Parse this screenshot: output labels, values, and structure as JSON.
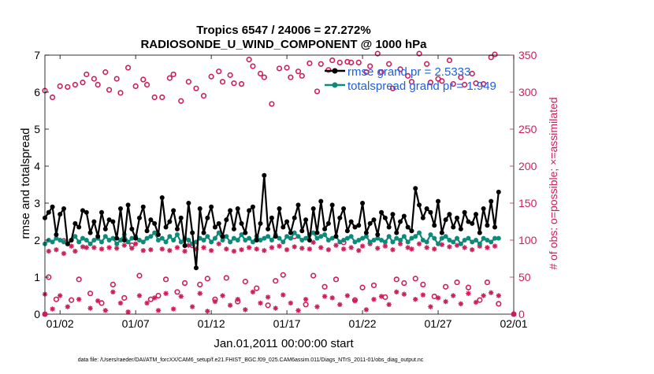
{
  "chart_data": {
    "type": "line",
    "title_line1": "Tropics 6547 / 24006 = 27.272%",
    "title_line2": "RADIOSONDE_U_WIND_COMPONENT @ 1000 hPa",
    "xlabel": "Jan.01,2011 00:00:00 start",
    "ylabel_left": "rmse and totalspread",
    "ylabel_right": "# of obs: o=possible; ×=assimilated",
    "footer": "data file: /Users/raeder/DAI/ATM_forcXX/CAM6_setup/f.e21.FHIST_BGC.f09_025.CAM6assim.011/Diags_NTrS_2011-01/obs_diag_output.nc",
    "xlim": [
      0.5,
      31.5
    ],
    "ylim_left": [
      0,
      7
    ],
    "ylim_right": [
      0,
      350
    ],
    "x_ticks": [
      1.5,
      6.5,
      11.5,
      16.5,
      21.5,
      26.5,
      31.5
    ],
    "x_tick_labels": [
      "01/02",
      "01/07",
      "01/12",
      "01/17",
      "01/22",
      "01/27",
      "02/01"
    ],
    "y_ticks_left": [
      0,
      1,
      2,
      3,
      4,
      5,
      6,
      7
    ],
    "y_tick_labels_left": [
      "0",
      "1",
      "2",
      "3",
      "4",
      "5",
      "6",
      "7"
    ],
    "y_ticks_right": [
      0,
      50,
      100,
      150,
      200,
      250,
      300,
      350
    ],
    "y_tick_labels_right": [
      "0",
      "50",
      "100",
      "150",
      "200",
      "250",
      "300",
      "350"
    ],
    "legend": {
      "position": "top-right",
      "entries": [
        "rmse grand pr = 2.5333",
        "totalspread grand pr = 1.949"
      ]
    },
    "x_step": 0.25,
    "series": [
      {
        "name": "rmse",
        "color": "#000000",
        "values": [
          2.6,
          2.75,
          2.9,
          2.15,
          2.7,
          2.85,
          1.9,
          2.0,
          2.45,
          2.35,
          2.8,
          2.75,
          2.2,
          2.5,
          2.1,
          2.75,
          2.3,
          2.55,
          2.5,
          2.05,
          2.85,
          2.0,
          2.95,
          2.3,
          2.05,
          2.6,
          2.9,
          2.25,
          2.55,
          2.45,
          2.15,
          3.15,
          2.35,
          2.5,
          2.8,
          2.3,
          2.6,
          1.85,
          3.0,
          2.2,
          1.25,
          2.85,
          2.2,
          2.6,
          2.9,
          2.35,
          2.45,
          2.1,
          2.55,
          2.8,
          2.3,
          2.85,
          2.45,
          2.2,
          2.8,
          2.9,
          2.0,
          2.45,
          3.75,
          2.3,
          2.6,
          2.1,
          2.85,
          2.35,
          2.5,
          2.2,
          2.6,
          2.95,
          2.25,
          2.55,
          2.0,
          2.85,
          2.2,
          3.05,
          2.3,
          2.45,
          2.95,
          2.1,
          2.6,
          2.85,
          2.25,
          2.5,
          2.35,
          2.4,
          3.0,
          2.2,
          2.45,
          2.55,
          2.15,
          2.75,
          2.6,
          2.35,
          2.7,
          2.2,
          2.5,
          2.65,
          2.35,
          2.25,
          3.4,
          2.95,
          2.6,
          2.85,
          2.75,
          2.4,
          3.05,
          2.2,
          2.55,
          2.7,
          2.35,
          2.6,
          2.3,
          2.75,
          2.5,
          2.45,
          2.7,
          2.2,
          2.85,
          2.4,
          3.05,
          2.35,
          3.3
        ]
      },
      {
        "name": "totalspread",
        "color": "#0e8a7a",
        "values": [
          1.9,
          2.0,
          1.95,
          2.05,
          2.0,
          1.95,
          1.9,
          2.0,
          2.1,
          1.95,
          2.05,
          2.0,
          1.9,
          2.0,
          2.05,
          1.95,
          2.1,
          2.0,
          2.05,
          1.9,
          2.0,
          2.15,
          1.95,
          2.05,
          2.1,
          2.0,
          1.95,
          2.05,
          2.1,
          2.2,
          2.0,
          2.05,
          1.95,
          2.1,
          2.0,
          2.15,
          1.95,
          2.05,
          2.0,
          1.9,
          1.95,
          2.05,
          2.0,
          2.1,
          1.95,
          2.05,
          2.2,
          2.0,
          2.1,
          1.95,
          2.05,
          2.0,
          2.15,
          2.0,
          2.05,
          1.95,
          2.1,
          2.0,
          2.05,
          2.1,
          2.0,
          2.15,
          2.05,
          1.95,
          2.1,
          2.05,
          2.2,
          2.1,
          2.0,
          2.05,
          2.15,
          2.2,
          2.05,
          2.1,
          2.15,
          2.0,
          2.05,
          2.1,
          1.95,
          2.0,
          2.05,
          2.1,
          1.95,
          2.0,
          2.05,
          2.1,
          1.95,
          2.0,
          2.05,
          2.0,
          1.95,
          2.1,
          1.95,
          2.05,
          2.0,
          2.1,
          1.95,
          2.05,
          2.1,
          2.2,
          2.0,
          1.95,
          2.15,
          2.05,
          1.9,
          2.05,
          2.1,
          2.0,
          1.95,
          2.05,
          1.9,
          2.0,
          2.05,
          1.95,
          2.0,
          1.9,
          2.05,
          2.0,
          1.95,
          2.05,
          2.05
        ]
      }
    ],
    "obs_possible": {
      "name": "possible observations",
      "color": "#cc1f5a",
      "marker": "o",
      "values": [
        302,
        50,
        293,
        20,
        308,
        99,
        307,
        19,
        310,
        47,
        313,
        324,
        28,
        318,
        310,
        15,
        327,
        303,
        40,
        318,
        299,
        22,
        333,
        93,
        308,
        52,
        317,
        310,
        20,
        293,
        25,
        293,
        47,
        319,
        324,
        30,
        288,
        42,
        314,
        93,
        305,
        40,
        295,
        48,
        321,
        20,
        328,
        314,
        49,
        323,
        312,
        17,
        311,
        44,
        344,
        335,
        35,
        325,
        320,
        12,
        284,
        45,
        332,
        53,
        333,
        320,
        105,
        328,
        322,
        13,
        339,
        52,
        301,
        338,
        37,
        330,
        343,
        47,
        340,
        97,
        341,
        340,
        19,
        340,
        36,
        327,
        335,
        39,
        352,
        327,
        23,
        338,
        305,
        47,
        331,
        42,
        322,
        314,
        48,
        352,
        40,
        338,
        313,
        24,
        318,
        315,
        37,
        343,
        311,
        43,
        320,
        310,
        36,
        325,
        312,
        19,
        311,
        43,
        347,
        351,
        14
      ]
    },
    "obs_assimilated": {
      "name": "assimilated observations",
      "color": "#cc1f5a",
      "marker": "*",
      "values": [
        27,
        85,
        7,
        87,
        25,
        82,
        10,
        92,
        85,
        20,
        91,
        90,
        8,
        90,
        18,
        88,
        5,
        90,
        30,
        89,
        15,
        93,
        3,
        89,
        95,
        25,
        86,
        15,
        87,
        22,
        5,
        88,
        28,
        86,
        7,
        90,
        24,
        85,
        93,
        10,
        88,
        28,
        90,
        4,
        86,
        17,
        95,
        25,
        88,
        12,
        85,
        20,
        87,
        6,
        90,
        30,
        88,
        15,
        86,
        23,
        90,
        8,
        92,
        26,
        87,
        15,
        91,
        5,
        89,
        20,
        88,
        97,
        10,
        90,
        24,
        87,
        22,
        93,
        13,
        88,
        25,
        90,
        18,
        86,
        92,
        6,
        95,
        20,
        89,
        24,
        92,
        13,
        87,
        30,
        95,
        27,
        90,
        88,
        20,
        95,
        26,
        90,
        10,
        88,
        22,
        94,
        17,
        91,
        25,
        93,
        14,
        90,
        28,
        87,
        16,
        92,
        25,
        90,
        29,
        92,
        25
      ]
    }
  }
}
